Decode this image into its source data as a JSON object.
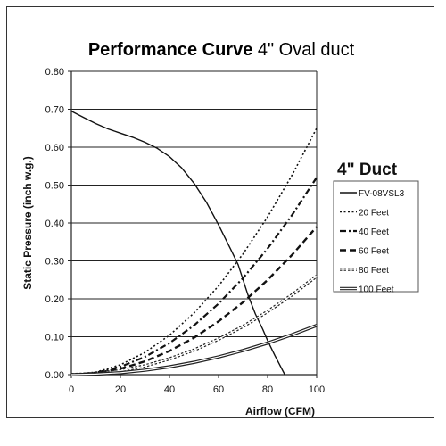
{
  "chart_data": {
    "type": "line",
    "title_bold": "Performance Curve",
    "title_rest": " 4\" Oval duct",
    "xlabel": "Airflow (CFM)",
    "ylabel": "Static Pressure (inch w.g.)",
    "xlim": [
      0,
      100
    ],
    "ylim": [
      0,
      0.8
    ],
    "xticks": [
      0,
      20,
      40,
      60,
      80,
      100
    ],
    "xtick_labels": [
      "0",
      "20",
      "40",
      "60",
      "80",
      "100"
    ],
    "yticks": [
      0,
      0.1,
      0.2,
      0.3,
      0.4,
      0.5,
      0.6,
      0.7,
      0.8
    ],
    "ytick_labels": [
      "0.00",
      "0.10",
      "0.20",
      "0.30",
      "0.40",
      "0.50",
      "0.60",
      "0.70",
      "0.80"
    ],
    "grid": "horizontal",
    "legend_title": "4\" Duct",
    "legend_position": "right",
    "series": [
      {
        "name": "FV-08VSL3",
        "style": "solid",
        "x": [
          0,
          5,
          10,
          15,
          20,
          25,
          30,
          35,
          40,
          45,
          50,
          55,
          60,
          65,
          68,
          70,
          72,
          75,
          78,
          80,
          83,
          85,
          87
        ],
        "y": [
          0.695,
          0.678,
          0.662,
          0.648,
          0.637,
          0.626,
          0.613,
          0.597,
          0.575,
          0.545,
          0.505,
          0.455,
          0.395,
          0.33,
          0.29,
          0.25,
          0.21,
          0.16,
          0.12,
          0.09,
          0.05,
          0.025,
          0.0
        ]
      },
      {
        "name": "20 Feet",
        "style": "dot",
        "x": [
          0,
          10,
          20,
          30,
          40,
          50,
          60,
          70,
          80,
          90,
          100
        ],
        "y": [
          0.0,
          0.0065,
          0.026,
          0.0585,
          0.104,
          0.1625,
          0.234,
          0.3185,
          0.416,
          0.5265,
          0.65
        ]
      },
      {
        "name": "40 Feet",
        "style": "dashdot",
        "x": [
          0,
          10,
          20,
          30,
          40,
          50,
          60,
          70,
          80,
          90,
          100
        ],
        "y": [
          0.0,
          0.0052,
          0.0208,
          0.0468,
          0.0832,
          0.13,
          0.1872,
          0.2548,
          0.3328,
          0.4212,
          0.52
        ]
      },
      {
        "name": "60 Feet",
        "style": "dash",
        "x": [
          0,
          10,
          20,
          30,
          40,
          50,
          60,
          70,
          80,
          90,
          100
        ],
        "y": [
          0.0,
          0.0039,
          0.0156,
          0.0351,
          0.0624,
          0.0975,
          0.1404,
          0.1911,
          0.2496,
          0.3159,
          0.39
        ]
      },
      {
        "name": "80 Feet",
        "style": "double-dot",
        "x": [
          0,
          10,
          20,
          30,
          40,
          50,
          60,
          70,
          80,
          90,
          100
        ],
        "y": [
          0.0,
          0.0026,
          0.0104,
          0.0234,
          0.0416,
          0.065,
          0.0936,
          0.1274,
          0.1664,
          0.2106,
          0.26
        ]
      },
      {
        "name": "100 Feet",
        "style": "double",
        "x": [
          0,
          10,
          20,
          30,
          40,
          50,
          60,
          70,
          80,
          90,
          100
        ],
        "y": [
          0.0,
          0.0013,
          0.0052,
          0.0117,
          0.0208,
          0.0325,
          0.0468,
          0.0637,
          0.0832,
          0.1053,
          0.13
        ]
      }
    ]
  }
}
